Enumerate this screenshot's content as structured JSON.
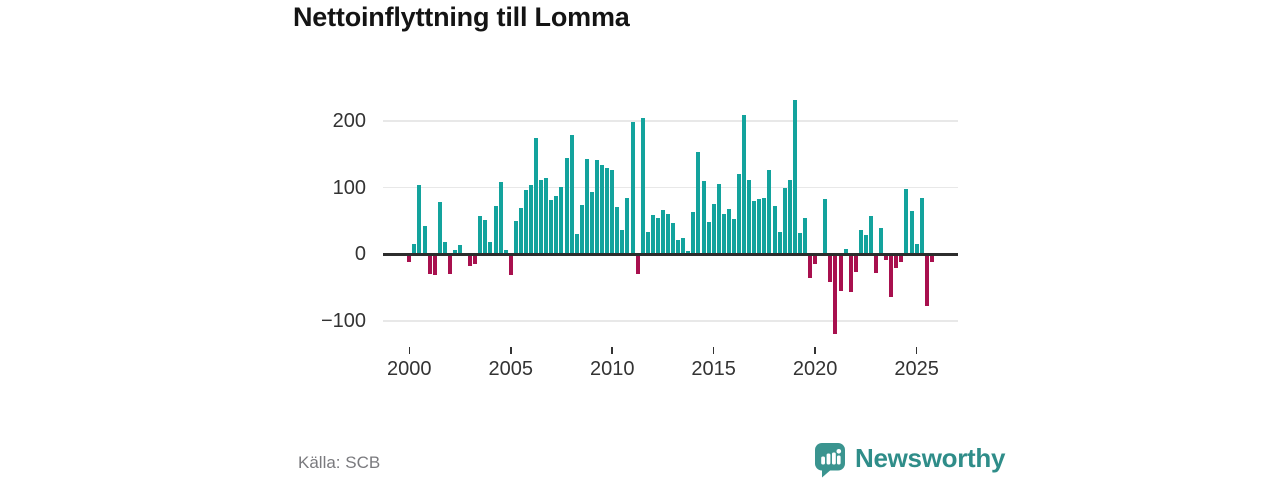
{
  "title": "Nettoinflyttning till Lomma",
  "source": "Källa: SCB",
  "brand": {
    "name": "Newsworthy",
    "icon": "newsworthy-speech-bubble-bar-chart-icon",
    "icon_color": "#3a948f",
    "text_color": "#2f8d89"
  },
  "chart_data": {
    "type": "bar",
    "title": "Nettoinflyttning till Lomma",
    "xlabel": "",
    "ylabel": "",
    "grid": "horizontal",
    "legend": "none",
    "ylim": [
      -130,
      245
    ],
    "y_ticks": [
      {
        "value": 200,
        "label": "200"
      },
      {
        "value": 100,
        "label": "100"
      },
      {
        "value": 0,
        "label": "0"
      },
      {
        "value": -100,
        "label": "−100"
      }
    ],
    "x_ticks": [
      "2000",
      "2005",
      "2010",
      "2015",
      "2020",
      "2025"
    ],
    "colors": {
      "positive": "#13a39d",
      "negative": "#a8104e"
    },
    "categories": [
      "2000 Q1",
      "2000 Q2",
      "2000 Q3",
      "2000 Q4",
      "2001 Q1",
      "2001 Q2",
      "2001 Q3",
      "2001 Q4",
      "2002 Q1",
      "2002 Q2",
      "2002 Q3",
      "2002 Q4",
      "2003 Q1",
      "2003 Q2",
      "2003 Q3",
      "2003 Q4",
      "2004 Q1",
      "2004 Q2",
      "2004 Q3",
      "2004 Q4",
      "2005 Q1",
      "2005 Q2",
      "2005 Q3",
      "2005 Q4",
      "2006 Q1",
      "2006 Q2",
      "2006 Q3",
      "2006 Q4",
      "2007 Q1",
      "2007 Q2",
      "2007 Q3",
      "2007 Q4",
      "2008 Q1",
      "2008 Q2",
      "2008 Q3",
      "2008 Q4",
      "2009 Q1",
      "2009 Q2",
      "2009 Q3",
      "2009 Q4",
      "2010 Q1",
      "2010 Q2",
      "2010 Q3",
      "2010 Q4",
      "2011 Q1",
      "2011 Q2",
      "2011 Q3",
      "2011 Q4",
      "2012 Q1",
      "2012 Q2",
      "2012 Q3",
      "2012 Q4",
      "2013 Q1",
      "2013 Q2",
      "2013 Q3",
      "2013 Q4",
      "2014 Q1",
      "2014 Q2",
      "2014 Q3",
      "2014 Q4",
      "2015 Q1",
      "2015 Q2",
      "2015 Q3",
      "2015 Q4",
      "2016 Q1",
      "2016 Q2",
      "2016 Q3",
      "2016 Q4",
      "2017 Q1",
      "2017 Q2",
      "2017 Q3",
      "2017 Q4",
      "2018 Q1",
      "2018 Q2",
      "2018 Q3",
      "2018 Q4",
      "2019 Q1",
      "2019 Q2",
      "2019 Q3",
      "2019 Q4",
      "2020 Q1",
      "2020 Q2",
      "2020 Q3",
      "2020 Q4",
      "2021 Q1",
      "2021 Q2",
      "2021 Q3",
      "2021 Q4",
      "2022 Q1",
      "2022 Q2",
      "2022 Q3",
      "2022 Q4",
      "2023 Q1",
      "2023 Q2",
      "2023 Q3",
      "2023 Q4",
      "2024 Q1",
      "2024 Q2",
      "2024 Q3",
      "2024 Q4",
      "2025 Q1",
      "2025 Q2",
      "2025 Q3",
      "2025 Q4"
    ],
    "values": [
      -12,
      15,
      104,
      43,
      -30,
      -31,
      78,
      18,
      -30,
      6,
      14,
      1,
      -17,
      -14,
      57,
      52,
      18,
      72,
      109,
      6,
      -31,
      50,
      69,
      96,
      104,
      174,
      112,
      114,
      82,
      87,
      101,
      145,
      179,
      31,
      74,
      143,
      94,
      141,
      134,
      130,
      126,
      71,
      36,
      85,
      199,
      -29,
      204,
      34,
      59,
      55,
      66,
      61,
      47,
      22,
      24,
      5,
      64,
      153,
      110,
      48,
      75,
      105,
      60,
      68,
      53,
      121,
      209,
      112,
      80,
      83,
      85,
      127,
      73,
      33,
      100,
      112,
      232,
      32,
      55,
      -35,
      -15,
      1,
      83,
      -41,
      -120,
      -55,
      8,
      -56,
      -26,
      37,
      29,
      57,
      -28,
      40,
      -8,
      -64,
      -20,
      -11,
      98,
      65,
      15,
      84,
      -78,
      -12
    ]
  }
}
